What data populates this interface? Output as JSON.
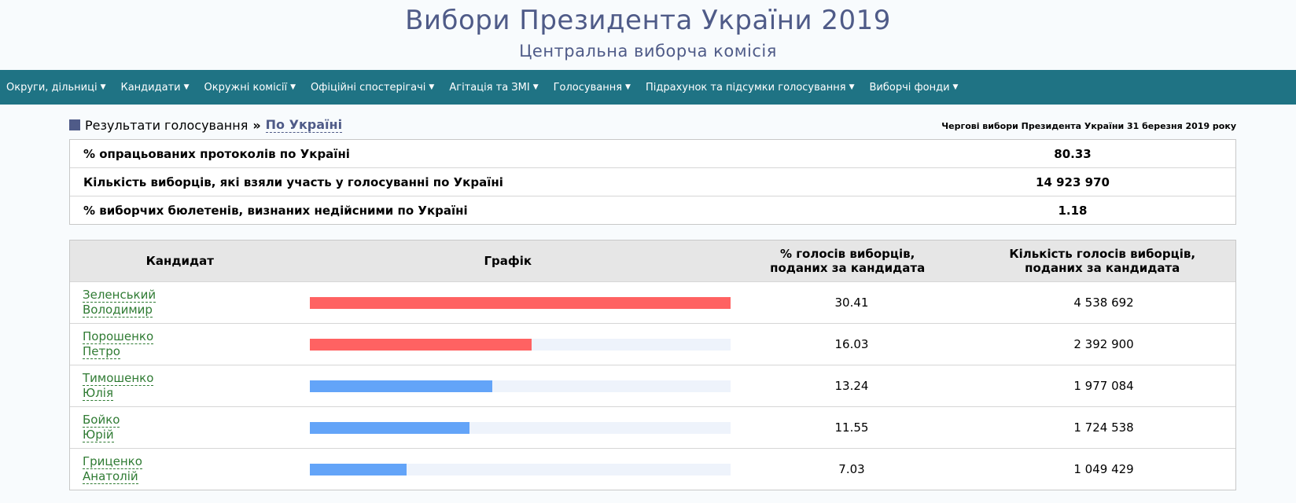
{
  "header": {
    "title": "Вибори Президента України 2019",
    "subtitle": "Центральна виборча комісія"
  },
  "nav": [
    "Округи, дільниці",
    "Кандидати",
    "Окружні комісії",
    "Офіційні спостерігачі",
    "Агітація та ЗМІ",
    "Голосування",
    "Підрахунок та підсумки голосування",
    "Виборчі фонди"
  ],
  "breadcrumb": {
    "section": "Результати голосування",
    "separator": "»",
    "current": "По Україні",
    "election": "Чергові вибори Президента України 31 березня 2019 року"
  },
  "summary": [
    {
      "label": "% опрацьованих протоколів по Україні",
      "value": "80.33"
    },
    {
      "label": "Кількість виборців, які взяли участь у голосуванні по Україні",
      "value": "14 923 970"
    },
    {
      "label": "% виборчих бюлетенів, визнаних недійсними по Україні",
      "value": "1.18"
    }
  ],
  "results": {
    "headers": {
      "candidate": "Кандидат",
      "chart": "Графік",
      "percent_line1": "% голосів виборців,",
      "percent_line2": "поданих за кандидата",
      "votes_line1": "Кількість голосів виборців,",
      "votes_line2": "поданих за кандидата"
    },
    "colors": {
      "red": "#ff6262",
      "blue": "#63a4f8",
      "track": "#eef3fb"
    },
    "rows": [
      {
        "surname": "Зеленський",
        "name": "Володимир",
        "percent": "30.41",
        "votes": "4 538 692",
        "bar_fraction": 1.0,
        "color": "#ff6262"
      },
      {
        "surname": "Порошенко",
        "name": "Петро",
        "percent": "16.03",
        "votes": "2 392 900",
        "bar_fraction": 0.527,
        "color": "#ff6262"
      },
      {
        "surname": "Тимошенко",
        "name": "Юлія",
        "percent": "13.24",
        "votes": "1 977 084",
        "bar_fraction": 0.435,
        "color": "#63a4f8"
      },
      {
        "surname": "Бойко",
        "name": "Юрій",
        "percent": "11.55",
        "votes": "1 724 538",
        "bar_fraction": 0.38,
        "color": "#63a4f8"
      },
      {
        "surname": "Гриценко",
        "name": "Анатолій",
        "percent": "7.03",
        "votes": "1 049 429",
        "bar_fraction": 0.231,
        "color": "#63a4f8"
      }
    ]
  }
}
